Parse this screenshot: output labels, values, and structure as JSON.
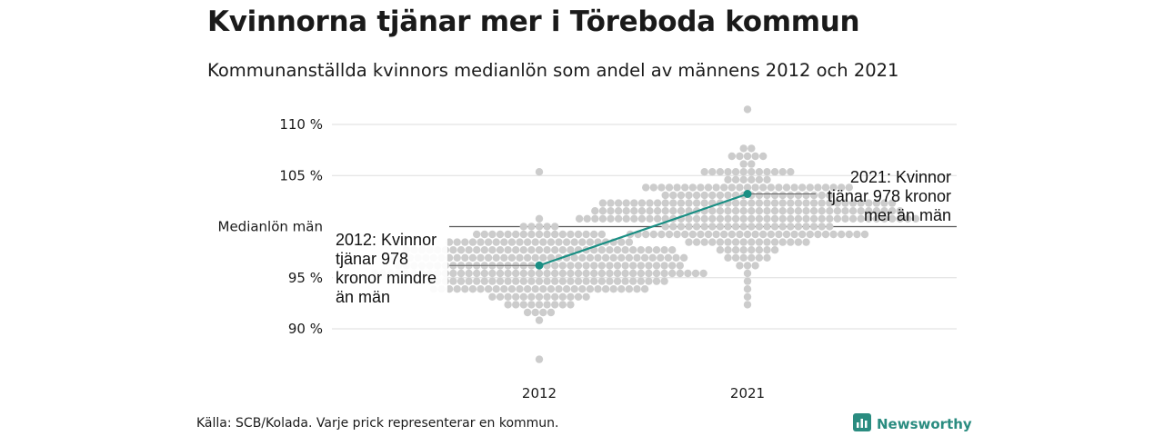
{
  "title": "Kvinnorna tjänar mer i Töreboda kommun",
  "subtitle": "Kommunanställda kvinnors medianlön som andel av männens 2012 och 2021",
  "source": "Källa: SCB/Kolada. Varje prick representerar en kommun.",
  "brand": {
    "name": "Newsworthy",
    "icon": "newsworthy-logo-icon",
    "color": "#2a8c80"
  },
  "chart_data": {
    "type": "scatter",
    "subtype": "beeswarm",
    "categories": [
      "2012",
      "2021"
    ],
    "y_ticks": [
      {
        "value": 110,
        "label": "110 %"
      },
      {
        "value": 105,
        "label": "105 %"
      },
      {
        "value": 100,
        "label": "Medianlön män"
      },
      {
        "value": 95,
        "label": "95 %"
      },
      {
        "value": 90,
        "label": "90 %"
      }
    ],
    "ylim": [
      86,
      112
    ],
    "reference_line": {
      "value": 100,
      "label": "Medianlön män"
    },
    "grid": true,
    "highlight": {
      "name": "Töreboda",
      "color": "#1a8f84",
      "points": [
        {
          "x": "2012",
          "y": 96.2,
          "annotation": [
            "2012: Kvinnor",
            "tjänar 978",
            "kronor mindre",
            "än män"
          ]
        },
        {
          "x": "2021",
          "y": 103.2,
          "annotation": [
            "2021: Kvinnor",
            "tjänar 978 kronor",
            "mer än män"
          ]
        }
      ]
    },
    "distribution_color": "#cccccc",
    "distributions": [
      {
        "category": "2012",
        "count": 290,
        "center": 96.0,
        "spread": 2.0,
        "min": 87.0,
        "max": 105.2
      },
      {
        "category": "2021",
        "count": 290,
        "center": 101.5,
        "spread": 2.3,
        "min": 92.5,
        "max": 111.5
      }
    ]
  }
}
